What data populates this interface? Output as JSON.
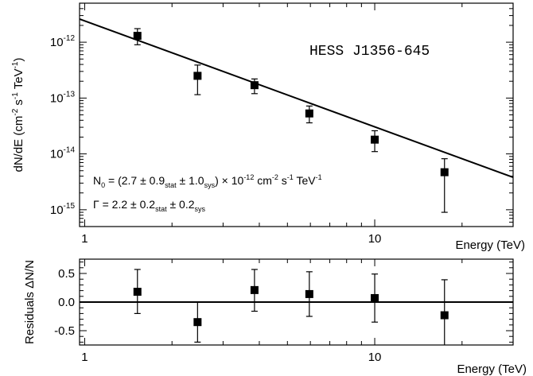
{
  "chart_data": [
    {
      "type": "scatter",
      "title": "",
      "source_label": "HESS J1356-645",
      "xlabel": "Energy (TeV)",
      "ylabel": {
        "pre": "dN/dE (cm",
        "e1": "-2",
        "m1": " s",
        "e2": "-1",
        "m2": " TeV",
        "e3": "-1",
        "post": ")"
      },
      "xscale": "log",
      "yscale": "log",
      "xlim": [
        0.96,
        30
      ],
      "ylim": [
        5e-16,
        5e-12
      ],
      "x_ticks": [
        {
          "v": 1,
          "label": "1"
        },
        {
          "v": 10,
          "label": "10"
        }
      ],
      "y_ticks": [
        {
          "v": 1e-12,
          "base": "10",
          "exp": "-12"
        },
        {
          "v": 1e-13,
          "base": "10",
          "exp": "-13"
        },
        {
          "v": 1e-14,
          "base": "10",
          "exp": "-14"
        },
        {
          "v": 1e-15,
          "base": "10",
          "exp": "-15"
        }
      ],
      "points": [
        {
          "x": 1.52,
          "y": 1.3e-12,
          "y_low": 9e-13,
          "y_high": 1.75e-12
        },
        {
          "x": 2.45,
          "y": 2.5e-13,
          "y_low": 1.15e-13,
          "y_high": 3.9e-13
        },
        {
          "x": 3.85,
          "y": 1.7e-13,
          "y_low": 1.2e-13,
          "y_high": 2.2e-13
        },
        {
          "x": 5.95,
          "y": 5.3e-14,
          "y_low": 3.6e-14,
          "y_high": 7.2e-14
        },
        {
          "x": 10.0,
          "y": 1.8e-14,
          "y_low": 1.1e-14,
          "y_high": 2.6e-14
        },
        {
          "x": 17.4,
          "y": 4.7e-15,
          "y_low": 9e-16,
          "y_high": 8.2e-15
        }
      ],
      "fit": {
        "x": [
          0.96,
          30
        ],
        "y": [
          2.6e-12,
          3.8e-15
        ]
      },
      "annotation_norm": {
        "a": "N",
        "a_sub": "0",
        "b": " = (2.7 ± 0.9",
        "b_sub": "stat",
        "c": " ± 1.0",
        "c_sub": "sys",
        "d": ") × 10",
        "d_sup": "-12",
        "e": " cm",
        "e_sup": "-2",
        "f": " s",
        "f_sup": "-1",
        "g": " TeV",
        "g_sup": "-1"
      },
      "annotation_index": {
        "a": "Γ",
        "b": "  = 2.2 ± 0.2",
        "b_sub": "stat",
        "c": " ± 0.2",
        "c_sub": "sys"
      }
    },
    {
      "type": "scatter",
      "title": "",
      "xlabel": "Energy (TeV)",
      "ylabel": "Residuals ΔN/N",
      "xscale": "log",
      "xlim": [
        0.96,
        30
      ],
      "ylim": [
        -0.75,
        0.75
      ],
      "x_ticks": [
        {
          "v": 1,
          "label": "1"
        },
        {
          "v": 10,
          "label": "10"
        }
      ],
      "y_ticks": [
        {
          "v": 0.5,
          "label": "0.5"
        },
        {
          "v": 0.0,
          "label": "0.0"
        },
        {
          "v": -0.5,
          "label": "-0.5"
        }
      ],
      "reference_line": 0,
      "points": [
        {
          "x": 1.52,
          "y": 0.18,
          "y_low": -0.2,
          "y_high": 0.57
        },
        {
          "x": 2.45,
          "y": -0.35,
          "y_low": -0.7,
          "y_high": 0.0
        },
        {
          "x": 3.85,
          "y": 0.21,
          "y_low": -0.16,
          "y_high": 0.57
        },
        {
          "x": 5.95,
          "y": 0.14,
          "y_low": -0.25,
          "y_high": 0.53
        },
        {
          "x": 10.0,
          "y": 0.07,
          "y_low": -0.35,
          "y_high": 0.49
        },
        {
          "x": 17.4,
          "y": -0.23,
          "y_low": -0.9,
          "y_high": 0.39
        }
      ]
    }
  ]
}
